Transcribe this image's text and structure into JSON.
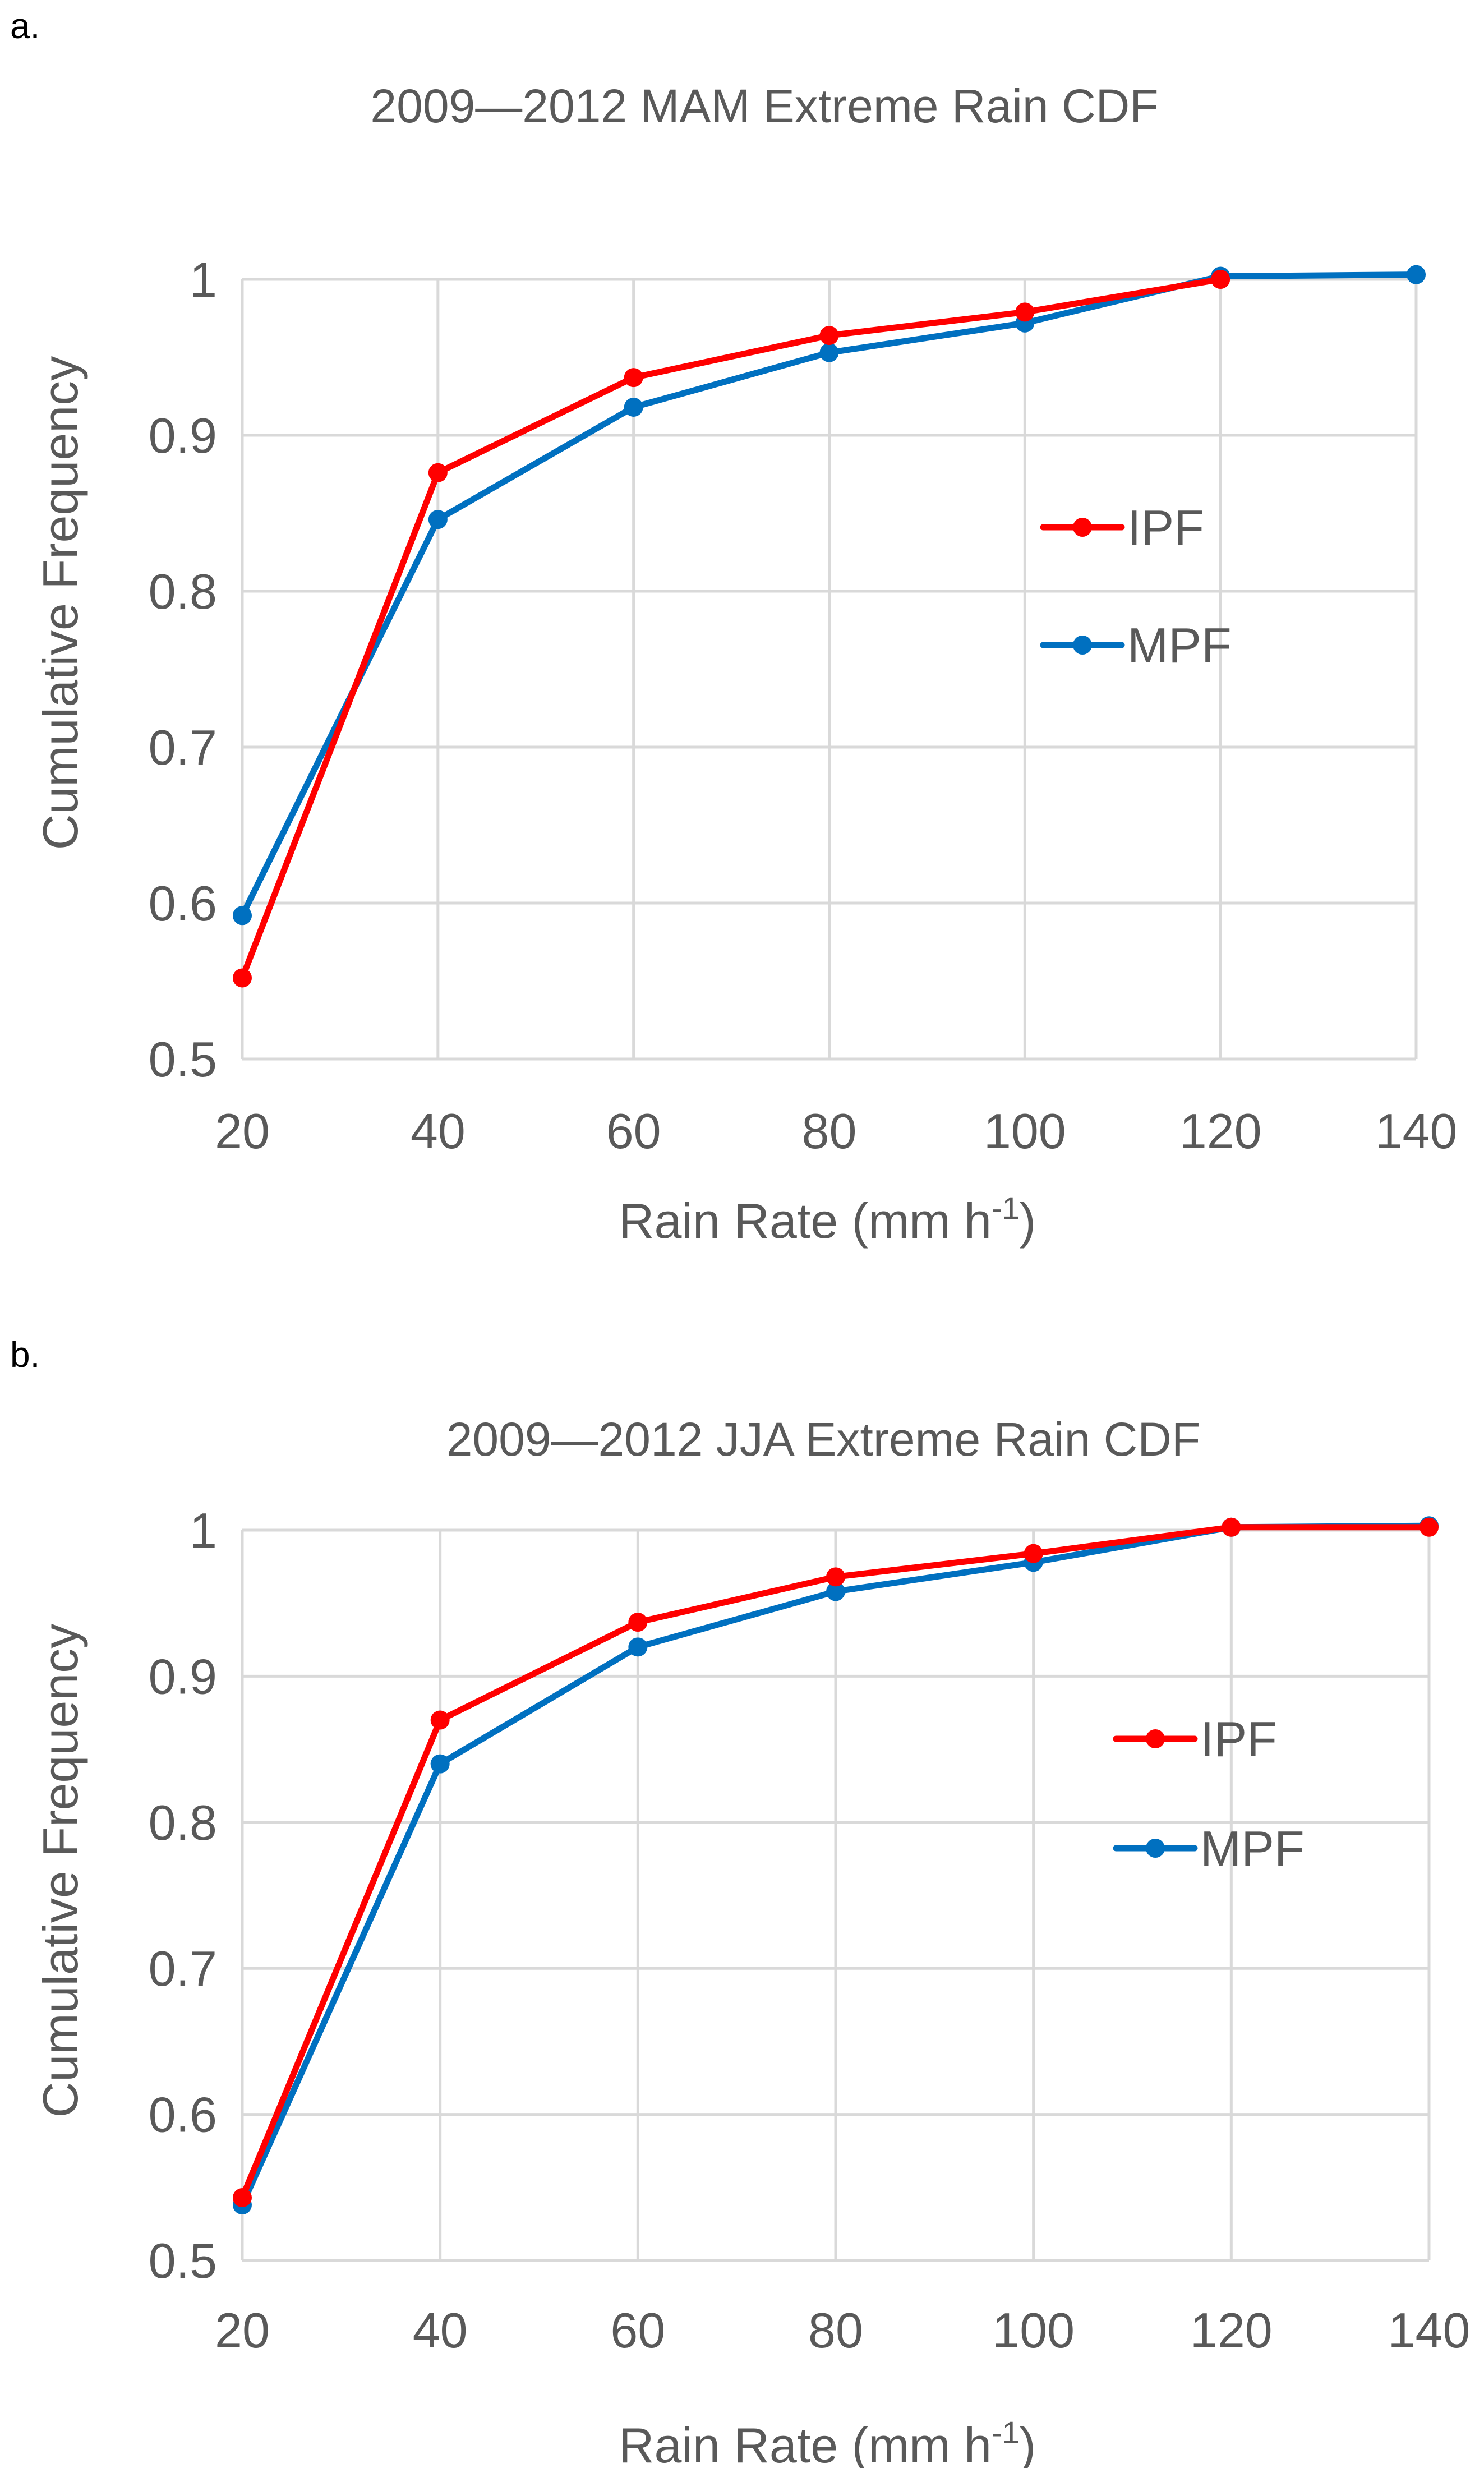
{
  "chart_data": [
    {
      "panel": "a.",
      "type": "line",
      "title": "2009—2012  MAM   Extreme Rain CDF",
      "xlabel": "Rain Rate (mm h",
      "xlabel_sup": "-1",
      "xlabel_suffix": ")",
      "ylabel": "Cumulative Frequency",
      "x": [
        20,
        40,
        60,
        80,
        100,
        120,
        140
      ],
      "xlim": [
        20,
        140
      ],
      "ylim": [
        0.5,
        1.0
      ],
      "xticks": [
        "20",
        "40",
        "60",
        "80",
        "100",
        "120",
        "140"
      ],
      "yticks": [
        "0.5",
        "0.6",
        "0.7",
        "0.8",
        "0.9",
        "1"
      ],
      "grid": true,
      "legend_position": "right",
      "series": [
        {
          "name": "IPF",
          "color": "#ff0000",
          "x": [
            20,
            40,
            60,
            80,
            100,
            120
          ],
          "values": [
            0.552,
            0.876,
            0.937,
            0.964,
            0.979,
            1.0
          ]
        },
        {
          "name": "MPF",
          "color": "#0070c0",
          "x": [
            20,
            40,
            60,
            80,
            100,
            120,
            140
          ],
          "values": [
            0.592,
            0.846,
            0.918,
            0.953,
            0.972,
            1.002,
            1.003
          ]
        }
      ]
    },
    {
      "panel": "b.",
      "type": "line",
      "title": "2009—2012  JJA  Extreme Rain CDF",
      "xlabel": "Rain Rate (mm h",
      "xlabel_sup": "-1",
      "xlabel_suffix": ")",
      "ylabel": "Cumulative Frequency",
      "x": [
        20,
        40,
        60,
        80,
        100,
        120,
        140
      ],
      "xlim": [
        20,
        140
      ],
      "ylim": [
        0.5,
        1.0
      ],
      "xticks": [
        "20",
        "40",
        "60",
        "80",
        "100",
        "120",
        "140"
      ],
      "yticks": [
        "0.5",
        "0.6",
        "0.7",
        "0.8",
        "0.9",
        "1"
      ],
      "grid": true,
      "legend_position": "right",
      "series": [
        {
          "name": "IPF",
          "color": "#ff0000",
          "x": [
            20,
            40,
            60,
            80,
            100,
            120,
            140
          ],
          "values": [
            0.543,
            0.87,
            0.937,
            0.968,
            0.984,
            1.002,
            1.002
          ]
        },
        {
          "name": "MPF",
          "color": "#0070c0",
          "x": [
            20,
            40,
            60,
            80,
            100,
            120,
            140
          ],
          "values": [
            0.538,
            0.84,
            0.92,
            0.958,
            0.978,
            1.002,
            1.003
          ]
        }
      ]
    }
  ]
}
